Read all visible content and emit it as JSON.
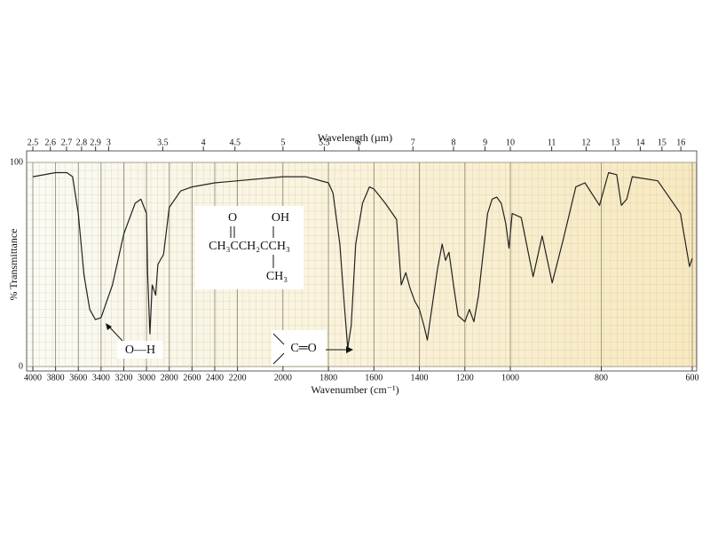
{
  "chart_data": {
    "type": "line",
    "top_axis_label": "Wavelength (µm)",
    "x_label": "Wavenumber (cm⁻¹)",
    "y_label": "% Transmittance",
    "xlim": [
      4000,
      600
    ],
    "xscale_breaks": [
      2200,
      1000
    ],
    "xticks": [
      4000,
      3800,
      3600,
      3400,
      3200,
      3000,
      2800,
      2600,
      2400,
      2200,
      2000,
      1800,
      1600,
      1400,
      1200,
      1000,
      800,
      600
    ],
    "top_ticks": [
      2.5,
      2.6,
      2.7,
      2.8,
      2.9,
      3,
      3.5,
      4,
      4.5,
      5,
      5.5,
      6,
      7,
      8,
      9,
      10,
      11,
      12,
      13,
      14,
      15,
      16
    ],
    "ylim": [
      0,
      100
    ],
    "yticks": [
      0,
      100
    ],
    "grid": true,
    "color": "#222222",
    "x": [
      4000,
      3800,
      3700,
      3650,
      3600,
      3550,
      3500,
      3450,
      3400,
      3300,
      3200,
      3100,
      3050,
      3000,
      2990,
      2970,
      2950,
      2920,
      2900,
      2850,
      2800,
      2700,
      2600,
      2400,
      2200,
      2000,
      1900,
      1800,
      1780,
      1750,
      1730,
      1715,
      1700,
      1680,
      1650,
      1620,
      1600,
      1550,
      1500,
      1480,
      1460,
      1440,
      1420,
      1400,
      1380,
      1365,
      1350,
      1320,
      1300,
      1285,
      1270,
      1250,
      1230,
      1200,
      1180,
      1160,
      1140,
      1120,
      1100,
      1080,
      1060,
      1040,
      1020,
      1006,
      996,
      976,
      950,
      930,
      908,
      884,
      856,
      836,
      804,
      784,
      766,
      756,
      744,
      732,
      676,
      626,
      606,
      600
    ],
    "values": [
      93,
      95,
      95,
      93,
      75,
      45,
      28,
      23,
      24,
      40,
      65,
      80,
      82,
      75,
      45,
      16,
      40,
      35,
      50,
      55,
      78,
      86,
      88,
      90,
      91,
      93,
      93,
      90,
      85,
      60,
      30,
      9,
      20,
      60,
      80,
      88,
      87,
      80,
      72,
      40,
      46,
      38,
      32,
      28,
      20,
      13,
      25,
      48,
      60,
      52,
      56,
      40,
      25,
      22,
      28,
      22,
      35,
      55,
      75,
      82,
      83,
      80,
      70,
      58,
      75,
      73,
      44,
      64,
      41,
      62,
      88,
      90,
      79,
      95,
      94,
      79,
      82,
      93,
      91,
      75,
      49,
      53
    ],
    "annotations": [
      "O—H",
      "C═O"
    ],
    "structure": {
      "top_left": "O",
      "top_right": "OH",
      "main": "CH₃CCH₂CCH₃",
      "bottom": "CH₃"
    }
  }
}
